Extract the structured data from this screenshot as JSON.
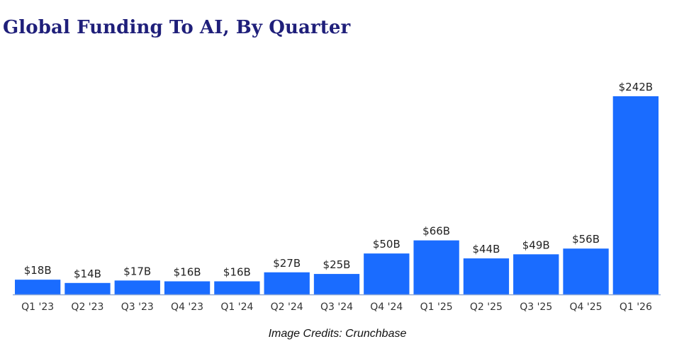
{
  "page": {
    "title": "Global Funding To AI, By Quarter",
    "credits": "Image Credits: Crunchbase"
  },
  "colors": {
    "bar": "#1a6cff",
    "axis": "#8fa9d8",
    "title": "#1f1f7a"
  },
  "chart_data": {
    "type": "bar",
    "title": "Global Funding To AI, By Quarter",
    "xlabel": "",
    "ylabel": "",
    "grid": false,
    "ylim": [
      0,
      260
    ],
    "categories": [
      "Q1 '23",
      "Q2 '23",
      "Q3 '23",
      "Q4 '23",
      "Q1 '24",
      "Q2 '24",
      "Q3 '24",
      "Q4 '24",
      "Q1 '25",
      "Q2 '25",
      "Q3 '25",
      "Q4 '25",
      "Q1 '26"
    ],
    "values": [
      18,
      14,
      17,
      16,
      16,
      27,
      25,
      50,
      66,
      44,
      49,
      56,
      242
    ],
    "value_labels": [
      "$18B",
      "$14B",
      "$17B",
      "$16B",
      "$16B",
      "$27B",
      "$25B",
      "$50B",
      "$66B",
      "$44B",
      "$49B",
      "$56B",
      "$242B"
    ]
  }
}
